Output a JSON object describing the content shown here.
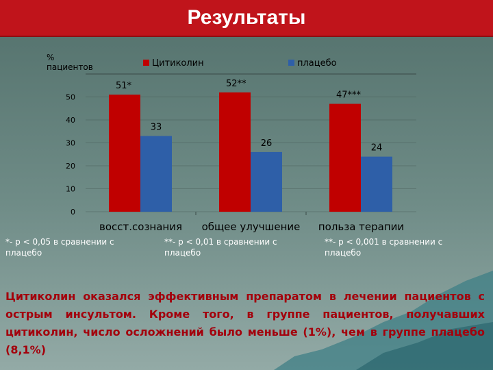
{
  "title": "Результаты",
  "chart_data": {
    "type": "bar",
    "y_label": "% пациентов",
    "categories": [
      "восст.сознания",
      "общее улучшение",
      "польза терапии"
    ],
    "series": [
      {
        "name": "Цитиколин",
        "color": "#c00000",
        "values": [
          51,
          52,
          47
        ],
        "value_labels": [
          "51*",
          "52**",
          "47***"
        ]
      },
      {
        "name": "плацебо",
        "color": "#2e5fa8",
        "values": [
          33,
          26,
          24
        ]
      }
    ],
    "ylim": [
      0,
      60
    ],
    "yticks": [
      0,
      10,
      20,
      30,
      40,
      50
    ],
    "grid": true
  },
  "footnotes": [
    "*- p < 0,05 в сравнении с плацебо",
    "**- p < 0,01 в сравнении с плацебо",
    "**- p < 0,001 в сравнении с плацебо"
  ],
  "conclusion": "Цитиколин оказался эффективным препаратом в лечении пациентов с острым инсультом. Кроме того, в группе пациентов, получавших цитиколин, число осложнений было меньше (1%), чем в группе плацебо (8,1%)"
}
